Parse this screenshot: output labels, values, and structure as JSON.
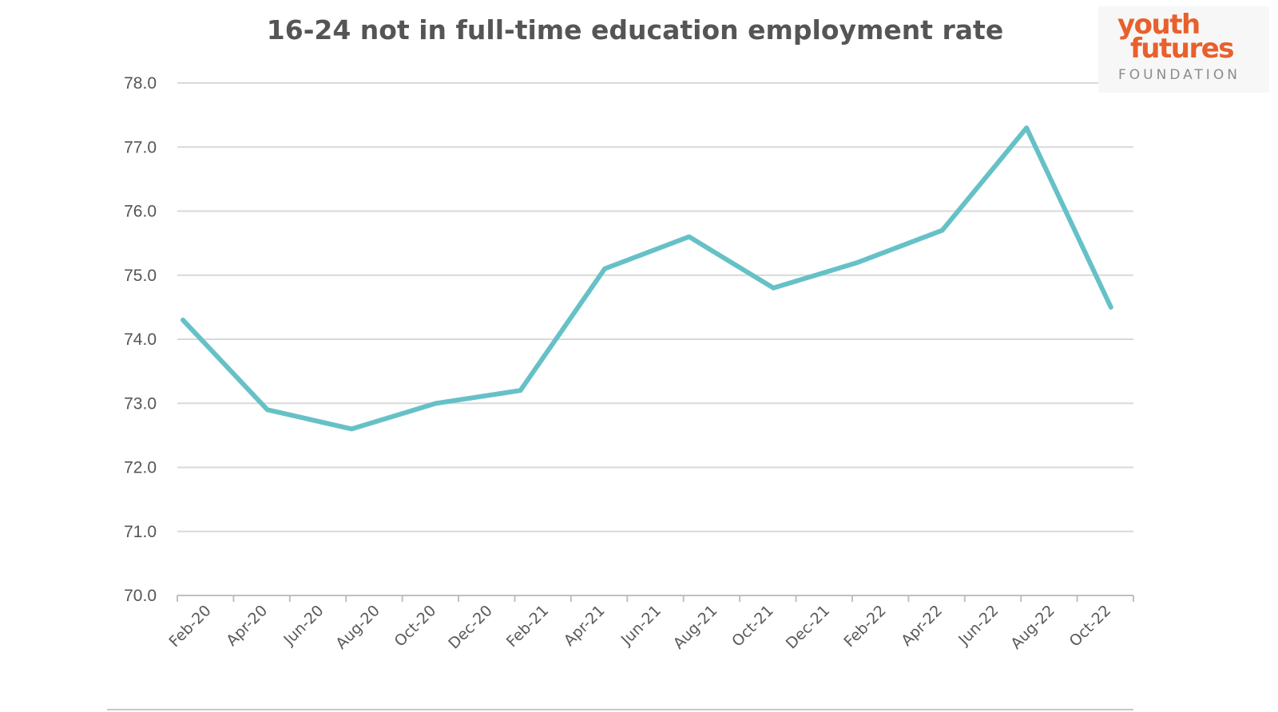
{
  "logo": {
    "line1": "youth",
    "line2": "futures",
    "line3": "FOUNDATION",
    "brand_color": "#e8602c"
  },
  "chart_data": {
    "type": "line",
    "title": "16-24 not in full-time education employment rate",
    "xlabel": "",
    "ylabel": "",
    "ylim": [
      70.0,
      78.0
    ],
    "y_ticks": [
      "70.0",
      "71.0",
      "72.0",
      "73.0",
      "74.0",
      "75.0",
      "76.0",
      "77.0",
      "78.0"
    ],
    "x_ticks": [
      "Feb-20",
      "Apr-20",
      "Jun-20",
      "Aug-20",
      "Oct-20",
      "Dec-20",
      "Feb-21",
      "Apr-21",
      "Jun-21",
      "Aug-21",
      "Oct-21",
      "Dec-21",
      "Feb-22",
      "Apr-22",
      "Jun-22",
      "Aug-22",
      "Oct-22"
    ],
    "grid": true,
    "line_color": "#66c1c7",
    "series": [
      {
        "x": [
          "Feb-20",
          "May-20",
          "Aug-20",
          "Nov-20",
          "Feb-21",
          "May-21",
          "Aug-21",
          "Nov-21",
          "Feb-22",
          "May-22",
          "Aug-22",
          "Nov-22"
        ],
        "values": [
          74.3,
          72.9,
          72.6,
          73.0,
          73.2,
          75.1,
          75.6,
          74.8,
          75.2,
          75.7,
          77.3,
          74.5
        ]
      }
    ]
  }
}
